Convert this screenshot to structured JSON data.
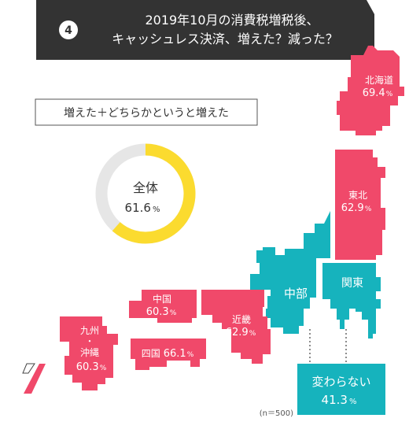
{
  "header": {
    "number": "4",
    "title_line1": "2019年10月の消費税増税後、",
    "title_line2": "キャッシュレス決済、増えた？減った？"
  },
  "legend_label": "増えた＋どちらかというと増えた",
  "colors": {
    "region": "#f0496a",
    "chubu_kanto": "#16b3bd",
    "donut_fill": "#fbdb2f",
    "donut_track": "#e6e6e6",
    "header_bg": "#333333",
    "island_outline": "#444444"
  },
  "chart_data": {
    "type": "pie",
    "title": "増えた＋どちらかというと増えた",
    "total": {
      "label": "全体",
      "value": 61.6,
      "display": "61.6",
      "unit": "%"
    },
    "regions": [
      {
        "name": "北海道",
        "value": 69.4,
        "display": "69.4",
        "unit": "%"
      },
      {
        "name": "東北",
        "value": 62.9,
        "display": "62.9",
        "unit": "%"
      },
      {
        "name": "中国",
        "value": 60.3,
        "display": "60.3",
        "unit": "%"
      },
      {
        "name": "四国",
        "value": 66.1,
        "display": "66.1",
        "unit": "%"
      },
      {
        "name": "近畿",
        "value": 62.9,
        "display": "62.9",
        "unit": "%"
      },
      {
        "name": "九州・沖縄",
        "line1": "九州",
        "dot": "・",
        "line2": "沖縄",
        "value": 60.3,
        "display": "60.3",
        "unit": "%"
      }
    ],
    "chubu_label": "中部",
    "kanto_label": "関東",
    "unchanged": {
      "label": "変わらない",
      "regions": [
        "中部",
        "関東"
      ],
      "value": 41.3,
      "display": "41.3",
      "unit": "%"
    },
    "sample": "(n＝500)"
  }
}
